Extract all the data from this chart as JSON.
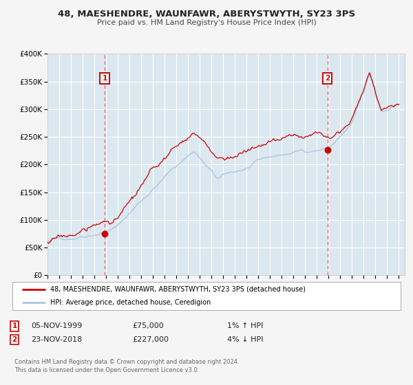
{
  "title": "48, MAESHENDRE, WAUNFAWR, ABERYSTWYTH, SY23 3PS",
  "subtitle": "Price paid vs. HM Land Registry's House Price Index (HPI)",
  "fig_bg_color": "#f5f5f5",
  "plot_bg_color": "#dce8f0",
  "grid_color": "#ffffff",
  "ylim": [
    0,
    400000
  ],
  "yticks": [
    0,
    50000,
    100000,
    150000,
    200000,
    250000,
    300000,
    350000,
    400000
  ],
  "ytick_labels": [
    "£0",
    "£50K",
    "£100K",
    "£150K",
    "£200K",
    "£250K",
    "£300K",
    "£350K",
    "£400K"
  ],
  "xlim_start": 1995.0,
  "xlim_end": 2025.5,
  "xticks": [
    1995,
    1996,
    1997,
    1998,
    1999,
    2000,
    2001,
    2002,
    2003,
    2004,
    2005,
    2006,
    2007,
    2008,
    2009,
    2010,
    2011,
    2012,
    2013,
    2014,
    2015,
    2016,
    2017,
    2018,
    2019,
    2020,
    2021,
    2022,
    2023,
    2024,
    2025
  ],
  "hpi_color": "#aac4e0",
  "price_color": "#cc0000",
  "marker_color": "#cc0000",
  "vline_color": "#e06060",
  "sale1_x": 1999.88,
  "sale1_y": 75000,
  "sale2_x": 2018.9,
  "sale2_y": 227000,
  "legend_line1": "48, MAESHENDRE, WAUNFAWR, ABERYSTWYTH, SY23 3PS (detached house)",
  "legend_line2": "HPI: Average price, detached house, Ceredigion",
  "annotation1_num": "1",
  "annotation2_num": "2",
  "annotation1_date": "05-NOV-1999",
  "annotation1_price": "£75,000",
  "annotation1_hpi": "1% ↑ HPI",
  "annotation2_date": "23-NOV-2018",
  "annotation2_price": "£227,000",
  "annotation2_hpi": "4% ↓ HPI",
  "footer1": "Contains HM Land Registry data © Crown copyright and database right 2024.",
  "footer2": "This data is licensed under the Open Government Licence v3.0."
}
